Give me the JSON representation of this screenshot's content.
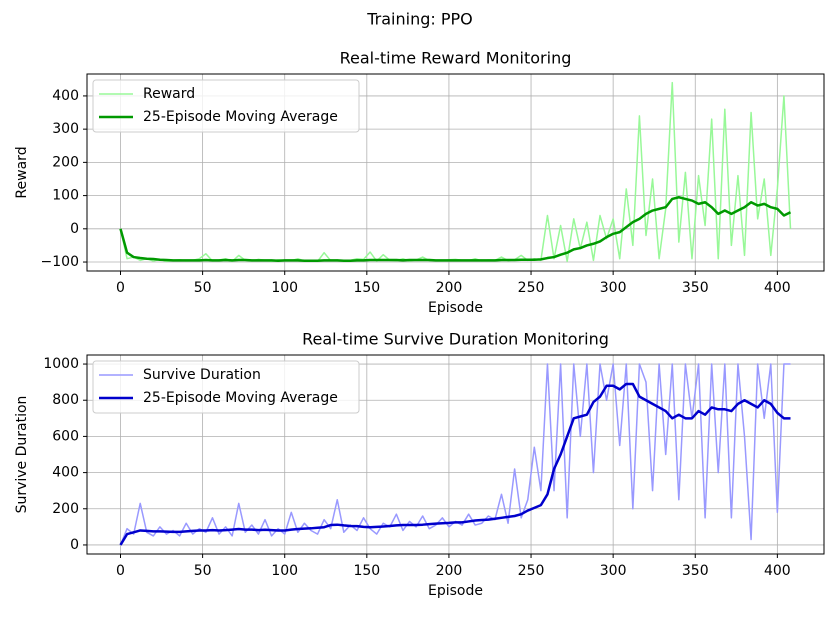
{
  "figure_title": "Training: PPO",
  "chart_data": [
    {
      "type": "line",
      "title": "Real-time Reward Monitoring",
      "xlabel": "Episode",
      "ylabel": "Reward",
      "xlim": [
        -20.4,
        428.4
      ],
      "ylim": [
        -127,
        466
      ],
      "xticks": [
        0,
        50,
        100,
        150,
        200,
        250,
        300,
        350,
        400
      ],
      "yticks": [
        {
          "value": -100,
          "label": "−100"
        },
        0,
        100,
        200,
        300,
        400
      ],
      "grid": true,
      "legend": "upper left",
      "x": [
        0,
        4,
        8,
        12,
        16,
        20,
        24,
        28,
        32,
        36,
        40,
        44,
        48,
        52,
        56,
        60,
        64,
        68,
        72,
        76,
        80,
        84,
        88,
        92,
        96,
        100,
        104,
        108,
        112,
        116,
        120,
        124,
        128,
        132,
        136,
        140,
        144,
        148,
        152,
        156,
        160,
        164,
        168,
        172,
        176,
        180,
        184,
        188,
        192,
        196,
        200,
        204,
        208,
        212,
        216,
        220,
        224,
        228,
        232,
        236,
        240,
        244,
        248,
        252,
        256,
        260,
        264,
        268,
        272,
        276,
        280,
        284,
        288,
        292,
        296,
        300,
        304,
        308,
        312,
        316,
        320,
        324,
        328,
        332,
        336,
        340,
        344,
        348,
        352,
        356,
        360,
        364,
        368,
        372,
        376,
        380,
        384,
        388,
        392,
        396,
        400,
        404,
        408
      ],
      "series": [
        {
          "name": "Reward",
          "color": "#98f898",
          "linewidth": 1.5,
          "values": [
            0,
            -90,
            -85,
            -95,
            -90,
            -97,
            -92,
            -98,
            -95,
            -93,
            -97,
            -95,
            -90,
            -75,
            -97,
            -94,
            -90,
            -98,
            -80,
            -95,
            -97,
            -92,
            -95,
            -98,
            -93,
            -95,
            -96,
            -90,
            -97,
            -95,
            -98,
            -72,
            -96,
            -94,
            -97,
            -95,
            -90,
            -92,
            -70,
            -97,
            -78,
            -95,
            -96,
            -90,
            -97,
            -94,
            -85,
            -96,
            -95,
            -97,
            -93,
            -92,
            -95,
            -96,
            -90,
            -97,
            -94,
            -95,
            -85,
            -96,
            -93,
            -80,
            -95,
            -90,
            -95,
            40,
            -90,
            10,
            -98,
            30,
            -60,
            20,
            -95,
            40,
            -30,
            30,
            -90,
            120,
            -50,
            340,
            -20,
            150,
            -90,
            60,
            440,
            -40,
            170,
            -90,
            160,
            10,
            330,
            -90,
            360,
            -50,
            160,
            -80,
            350,
            30,
            150,
            -80,
            120,
            400,
            0
          ]
        },
        {
          "name": "25-Episode Moving Average",
          "color": "#009900",
          "linewidth": 2.5,
          "values": [
            0,
            -72,
            -85,
            -88,
            -90,
            -91,
            -93,
            -94,
            -95,
            -95,
            -95,
            -95,
            -95,
            -94,
            -95,
            -95,
            -94,
            -95,
            -94,
            -94,
            -95,
            -95,
            -95,
            -95,
            -96,
            -95,
            -95,
            -95,
            -96,
            -96,
            -96,
            -95,
            -95,
            -95,
            -96,
            -96,
            -95,
            -95,
            -94,
            -94,
            -94,
            -94,
            -94,
            -95,
            -94,
            -94,
            -94,
            -94,
            -95,
            -95,
            -95,
            -95,
            -95,
            -95,
            -95,
            -95,
            -95,
            -95,
            -94,
            -94,
            -94,
            -93,
            -93,
            -93,
            -92,
            -88,
            -85,
            -78,
            -72,
            -62,
            -58,
            -50,
            -45,
            -38,
            -25,
            -15,
            -10,
            5,
            20,
            30,
            45,
            55,
            60,
            65,
            90,
            95,
            90,
            85,
            75,
            80,
            65,
            45,
            55,
            45,
            55,
            65,
            80,
            70,
            75,
            65,
            60,
            40,
            50
          ]
        }
      ]
    },
    {
      "type": "line",
      "title": "Real-time Survive Duration Monitoring",
      "xlabel": "Episode",
      "ylabel": "Survive Duration",
      "xlim": [
        -20.4,
        428.4
      ],
      "ylim": [
        -50,
        1050
      ],
      "xticks": [
        0,
        50,
        100,
        150,
        200,
        250,
        300,
        350,
        400
      ],
      "yticks": [
        0,
        200,
        400,
        600,
        800,
        1000
      ],
      "grid": true,
      "legend": "upper left",
      "x": [
        0,
        4,
        8,
        12,
        16,
        20,
        24,
        28,
        32,
        36,
        40,
        44,
        48,
        52,
        56,
        60,
        64,
        68,
        72,
        76,
        80,
        84,
        88,
        92,
        96,
        100,
        104,
        108,
        112,
        116,
        120,
        124,
        128,
        132,
        136,
        140,
        144,
        148,
        152,
        156,
        160,
        164,
        168,
        172,
        176,
        180,
        184,
        188,
        192,
        196,
        200,
        204,
        208,
        212,
        216,
        220,
        224,
        228,
        232,
        236,
        240,
        244,
        248,
        252,
        256,
        260,
        264,
        268,
        272,
        276,
        280,
        284,
        288,
        292,
        296,
        300,
        304,
        308,
        312,
        316,
        320,
        324,
        328,
        332,
        336,
        340,
        344,
        348,
        352,
        356,
        360,
        364,
        368,
        372,
        376,
        380,
        384,
        388,
        392,
        396,
        400,
        404,
        408
      ],
      "series": [
        {
          "name": "Survive Duration",
          "color": "#9999ff",
          "linewidth": 1.5,
          "values": [
            0,
            90,
            60,
            230,
            70,
            50,
            100,
            60,
            80,
            50,
            120,
            60,
            90,
            70,
            150,
            60,
            100,
            50,
            230,
            70,
            110,
            60,
            140,
            50,
            90,
            60,
            180,
            70,
            120,
            80,
            60,
            140,
            90,
            250,
            70,
            110,
            80,
            150,
            90,
            60,
            120,
            100,
            170,
            80,
            130,
            100,
            160,
            90,
            110,
            150,
            100,
            130,
            110,
            170,
            110,
            120,
            160,
            140,
            280,
            120,
            420,
            150,
            250,
            540,
            300,
            1000,
            300,
            1000,
            150,
            1000,
            600,
            1000,
            400,
            1000,
            800,
            1000,
            550,
            1000,
            200,
            1000,
            900,
            300,
            1000,
            500,
            1000,
            250,
            1000,
            700,
            1000,
            150,
            1000,
            400,
            1000,
            150,
            1000,
            600,
            30,
            1000,
            700,
            1000,
            180,
            1000,
            1000
          ]
        },
        {
          "name": "25-Episode Moving Average",
          "color": "#0000cc",
          "linewidth": 2.5,
          "values": [
            0,
            60,
            70,
            80,
            78,
            75,
            75,
            74,
            72,
            72,
            75,
            78,
            80,
            80,
            82,
            80,
            82,
            85,
            88,
            85,
            85,
            82,
            84,
            82,
            80,
            80,
            85,
            88,
            90,
            92,
            95,
            98,
            110,
            112,
            108,
            105,
            104,
            100,
            98,
            100,
            102,
            105,
            108,
            110,
            110,
            110,
            112,
            115,
            118,
            120,
            122,
            125,
            125,
            130,
            135,
            138,
            140,
            145,
            150,
            155,
            160,
            170,
            190,
            205,
            220,
            280,
            420,
            500,
            600,
            700,
            710,
            720,
            790,
            820,
            880,
            880,
            860,
            890,
            890,
            820,
            800,
            780,
            760,
            740,
            700,
            720,
            700,
            700,
            740,
            720,
            760,
            750,
            750,
            740,
            780,
            800,
            780,
            760,
            800,
            780,
            730,
            700,
            700
          ]
        }
      ]
    }
  ]
}
